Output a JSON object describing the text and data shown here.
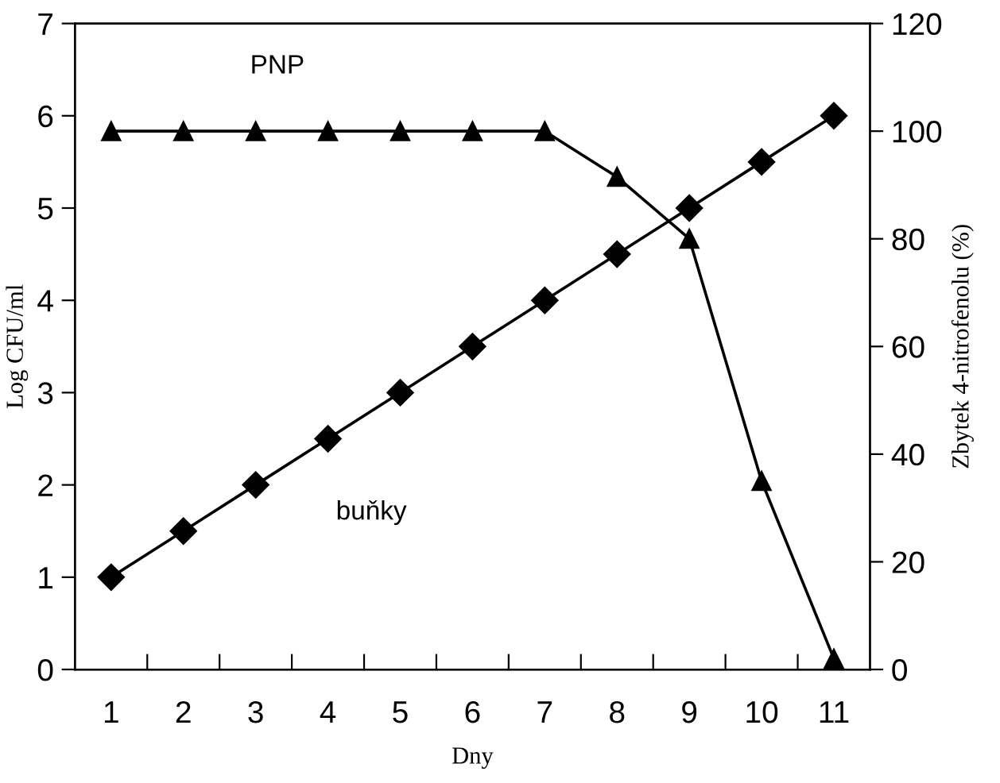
{
  "chart_data": {
    "type": "line",
    "xlabel": "Dny",
    "ylabel": "Log CFU/ml",
    "y2label": "Zbytek 4-nitrofenolu (%)",
    "categories": [
      "1",
      "2",
      "3",
      "4",
      "5",
      "6",
      "7",
      "8",
      "9",
      "10",
      "11"
    ],
    "series": [
      {
        "name": "buňky",
        "color": "#000000",
        "marker": "diamond",
        "values": [
          1,
          1.5,
          2,
          2.5,
          3,
          3.5,
          4,
          4.5,
          5,
          5.5,
          6
        ]
      },
      {
        "name": "PNP",
        "color": "#000000",
        "marker": "triangle",
        "axis": "y2",
        "values": [
          100,
          100,
          100,
          100,
          100,
          100,
          100,
          91.5,
          80,
          35,
          2
        ]
      }
    ],
    "ylim": [
      0,
      7
    ],
    "yticks": [
      0,
      1,
      2,
      3,
      4,
      5,
      6,
      7
    ],
    "y2lim": [
      0,
      120
    ],
    "y2ticks": [
      0,
      20,
      40,
      60,
      80,
      100,
      120
    ],
    "grid": false,
    "legend": false,
    "line_style": "solid"
  }
}
